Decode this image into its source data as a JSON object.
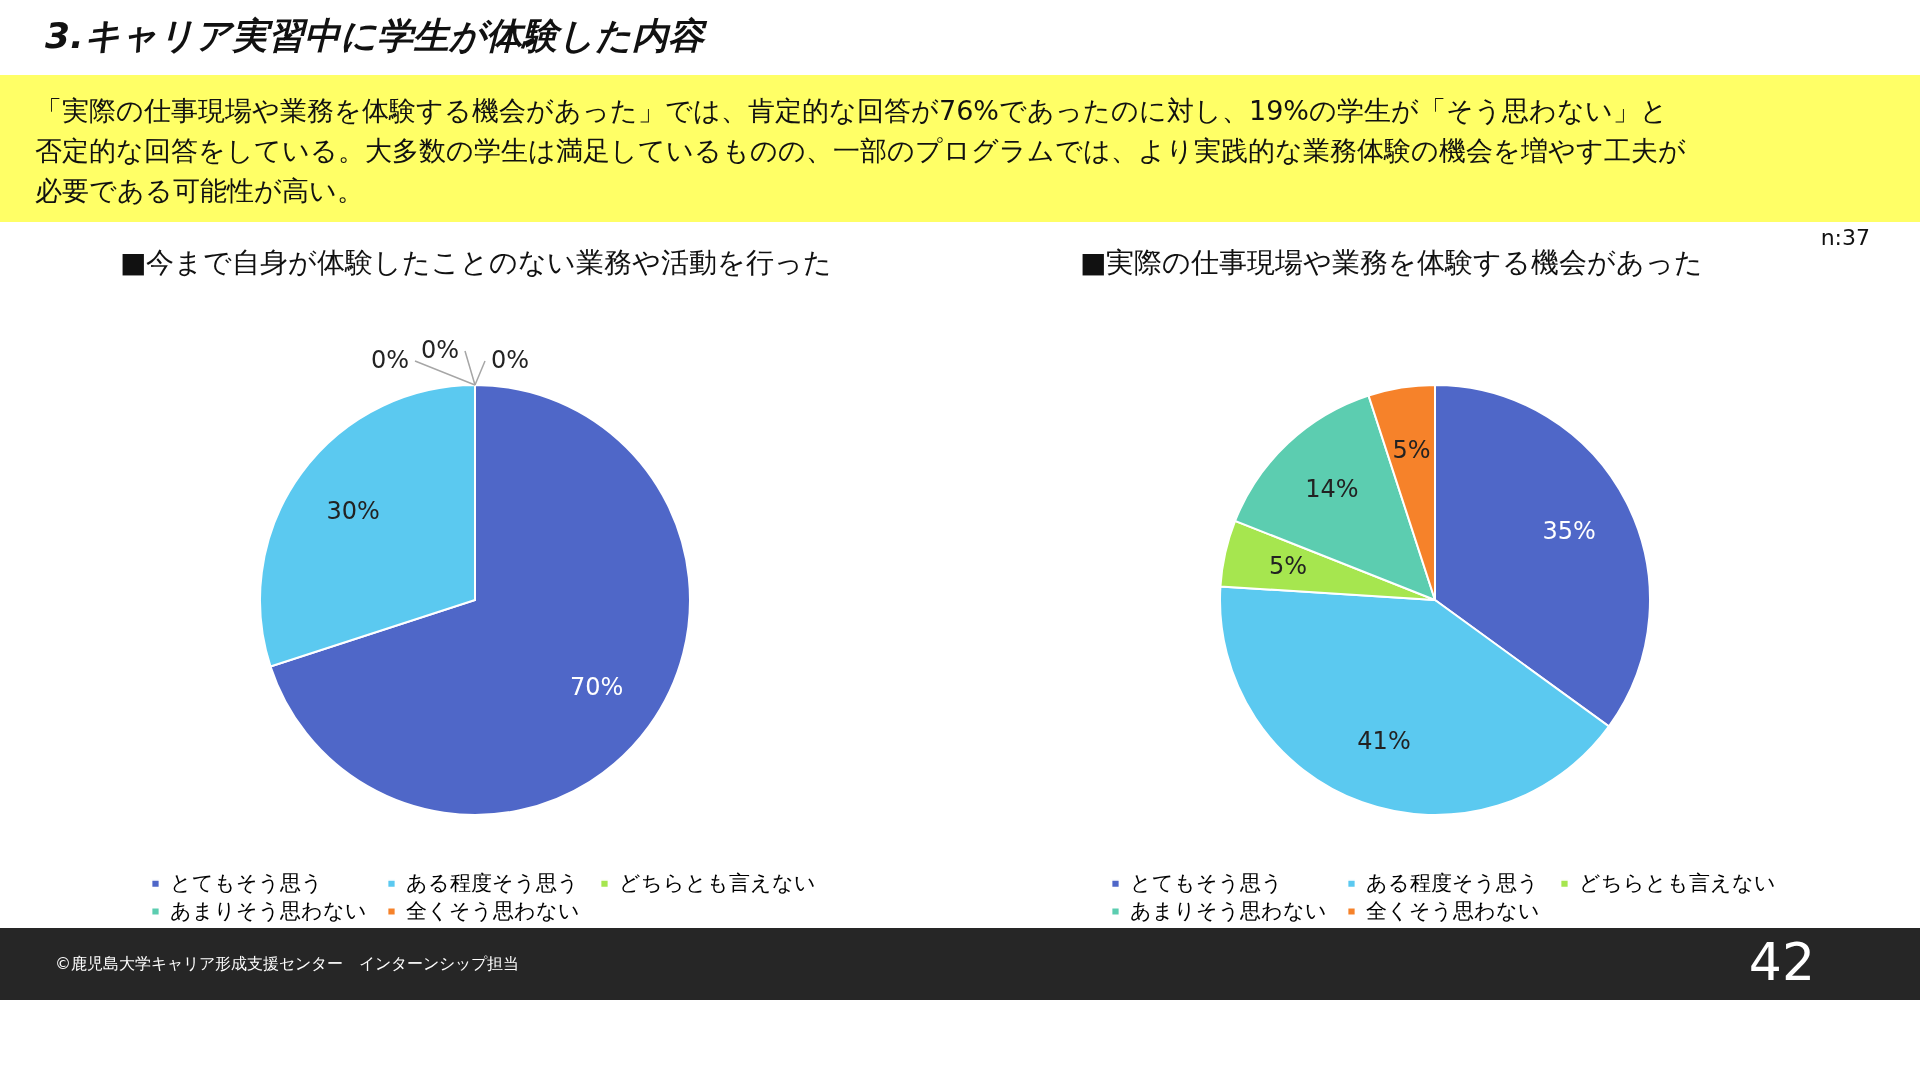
{
  "chart_data": [
    {
      "type": "pie",
      "title": "■今まで自身が体験したことのない業務や活動を行った",
      "categories": [
        "とてもそう思う",
        "ある程度そう思う",
        "どちらとも言えない",
        "あまりそう思わない",
        "全くそう思わない"
      ],
      "values": [
        70,
        30,
        0,
        0,
        0
      ],
      "value_labels": [
        "70%",
        "30%",
        "0%",
        "0%",
        "0%"
      ],
      "colors": [
        "#4f67c8",
        "#5bc9f0",
        "#a6e64f",
        "#5ccdb0",
        "#f6822a"
      ],
      "legend": "bottom",
      "annotations": [
        "3.キャリア実習中に学生が体験した内容",
        "「実際の仕事現場や業務を体験する機会があった」では、肯定的な回答が76%であったのに対し、19%の学生が「そう思わない」と",
        "否定的な回答をしている。大多数の学生は満足しているものの、一部のプログラムでは、より実践的な業務体験の機会を増やす工夫が",
        "必要である可能性が高い。",
        "n:37",
        "©鹿児島大学キャリア形成支援センター　インターンシップ担当",
        "42"
      ]
    },
    {
      "type": "pie",
      "title": "■実際の仕事現場や業務を体験する機会があった",
      "categories": [
        "とてもそう思う",
        "ある程度そう思う",
        "どちらとも言えない",
        "あまりそう思わない",
        "全くそう思わない"
      ],
      "values": [
        35,
        41,
        5,
        14,
        5
      ],
      "value_labels": [
        "35%",
        "41%",
        "5%",
        "14%",
        "5%"
      ],
      "colors": [
        "#4f67c8",
        "#5bc9f0",
        "#a6e64f",
        "#5ccdb0",
        "#f6822a"
      ],
      "legend": "bottom"
    }
  ]
}
